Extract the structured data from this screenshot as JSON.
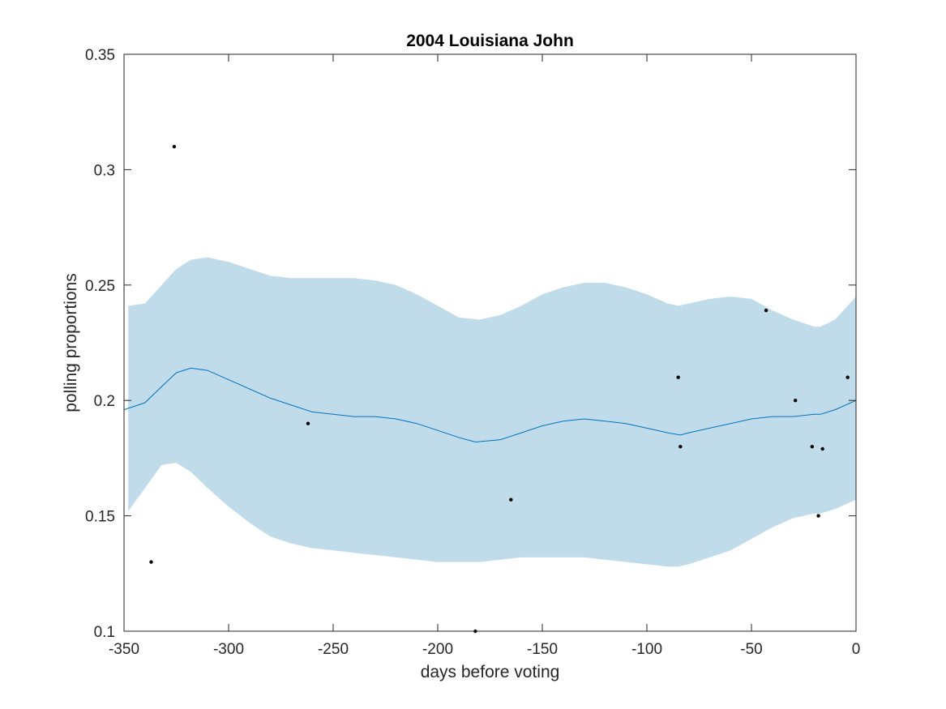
{
  "chart_data": {
    "type": "line",
    "title": "2004 Louisiana John",
    "xlabel": "days before voting",
    "ylabel": "polling proportions",
    "xlim": [
      -350,
      0
    ],
    "ylim": [
      0.1,
      0.35
    ],
    "grid": false,
    "x_ticks": [
      -350,
      -300,
      -250,
      -200,
      -150,
      -100,
      -50,
      0
    ],
    "x_tick_labels": [
      "-350",
      "-300",
      "-250",
      "-200",
      "-150",
      "-100",
      "-50",
      "0"
    ],
    "y_ticks": [
      0.1,
      0.15,
      0.2,
      0.25,
      0.3,
      0.35
    ],
    "y_tick_labels": [
      "0.1",
      "0.15",
      "0.2",
      "0.25",
      "0.3",
      "0.35"
    ],
    "band": {
      "color": "#c0dceb",
      "x": [
        -348,
        -340,
        -332,
        -325,
        -318,
        -310,
        -300,
        -290,
        -280,
        -270,
        -260,
        -250,
        -240,
        -230,
        -220,
        -210,
        -200,
        -190,
        -180,
        -170,
        -160,
        -150,
        -140,
        -130,
        -120,
        -110,
        -100,
        -90,
        -85,
        -80,
        -70,
        -60,
        -50,
        -40,
        -30,
        -20,
        -17,
        -10,
        0
      ],
      "upper": [
        0.241,
        0.242,
        0.25,
        0.257,
        0.261,
        0.262,
        0.26,
        0.257,
        0.254,
        0.253,
        0.253,
        0.253,
        0.253,
        0.252,
        0.25,
        0.246,
        0.241,
        0.236,
        0.235,
        0.237,
        0.241,
        0.246,
        0.249,
        0.251,
        0.251,
        0.249,
        0.246,
        0.242,
        0.241,
        0.242,
        0.244,
        0.245,
        0.244,
        0.239,
        0.235,
        0.232,
        0.232,
        0.235,
        0.245
      ],
      "lower": [
        0.152,
        0.162,
        0.172,
        0.173,
        0.169,
        0.162,
        0.154,
        0.147,
        0.141,
        0.138,
        0.136,
        0.135,
        0.134,
        0.133,
        0.132,
        0.131,
        0.13,
        0.13,
        0.13,
        0.131,
        0.132,
        0.132,
        0.132,
        0.132,
        0.131,
        0.13,
        0.129,
        0.128,
        0.128,
        0.129,
        0.132,
        0.135,
        0.14,
        0.145,
        0.149,
        0.151,
        0.151,
        0.153,
        0.157
      ]
    },
    "series": [
      {
        "color": "#0072bd",
        "x": [
          -350,
          -340,
          -332,
          -325,
          -318,
          -310,
          -300,
          -290,
          -280,
          -270,
          -260,
          -250,
          -240,
          -230,
          -220,
          -210,
          -200,
          -190,
          -182,
          -170,
          -160,
          -150,
          -140,
          -130,
          -120,
          -110,
          -100,
          -90,
          -84,
          -80,
          -70,
          -60,
          -50,
          -40,
          -30,
          -20,
          -17,
          -10,
          0
        ],
        "y": [
          0.196,
          0.199,
          0.206,
          0.212,
          0.214,
          0.213,
          0.209,
          0.205,
          0.201,
          0.198,
          0.195,
          0.194,
          0.193,
          0.193,
          0.192,
          0.19,
          0.187,
          0.184,
          0.182,
          0.183,
          0.186,
          0.189,
          0.191,
          0.192,
          0.191,
          0.19,
          0.188,
          0.186,
          0.185,
          0.186,
          0.188,
          0.19,
          0.192,
          0.193,
          0.193,
          0.194,
          0.194,
          0.196,
          0.2
        ]
      }
    ],
    "points": {
      "color": "#000000",
      "x": [
        -337,
        -326,
        -262,
        -182,
        -165,
        -85,
        -84,
        -43,
        -29,
        -21,
        -16,
        -18,
        -4
      ],
      "y": [
        0.13,
        0.31,
        0.19,
        0.1,
        0.157,
        0.21,
        0.18,
        0.239,
        0.2,
        0.18,
        0.179,
        0.15,
        0.21
      ]
    }
  }
}
